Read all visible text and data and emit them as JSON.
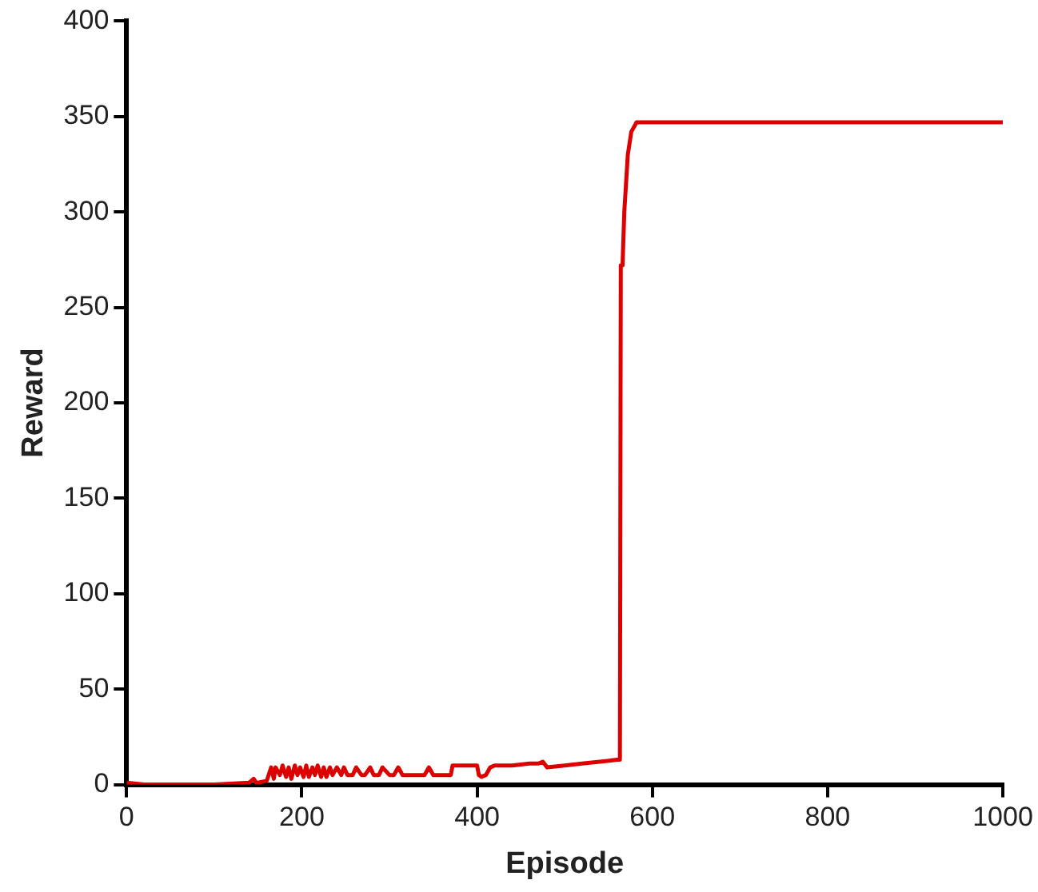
{
  "chart_data": {
    "type": "line",
    "xlabel": "Episode",
    "ylabel": "Reward",
    "xlim": [
      0,
      1000
    ],
    "ylim": [
      0,
      400
    ],
    "xticks": [
      0,
      200,
      400,
      600,
      800,
      1000
    ],
    "yticks": [
      0,
      50,
      100,
      150,
      200,
      250,
      300,
      350,
      400
    ],
    "grid": false,
    "legend": false,
    "marker": "none",
    "line_style": "solid",
    "series": [
      {
        "color": "#dd0000",
        "x": [
          0,
          20,
          60,
          100,
          140,
          145,
          148,
          150,
          160,
          165,
          168,
          170,
          175,
          178,
          182,
          185,
          188,
          192,
          195,
          198,
          202,
          205,
          208,
          212,
          215,
          218,
          222,
          225,
          228,
          232,
          235,
          240,
          245,
          248,
          252,
          258,
          262,
          268,
          272,
          278,
          282,
          288,
          292,
          300,
          305,
          310,
          315,
          320,
          330,
          340,
          345,
          350,
          355,
          360,
          370,
          372,
          380,
          390,
          395,
          400,
          402,
          405,
          410,
          415,
          420,
          440,
          460,
          470,
          475,
          480,
          500,
          520,
          540,
          560,
          563,
          564,
          566,
          568,
          572,
          576,
          582,
          1000
        ],
        "values": [
          1,
          0,
          0,
          0,
          1,
          3,
          1,
          1,
          2,
          9,
          3,
          9,
          5,
          10,
          4,
          9,
          3,
          10,
          5,
          9,
          4,
          10,
          4,
          9,
          5,
          10,
          4,
          9,
          4,
          9,
          5,
          9,
          5,
          9,
          5,
          5,
          9,
          5,
          5,
          9,
          5,
          5,
          9,
          5,
          5,
          9,
          5,
          5,
          5,
          5,
          9,
          5,
          5,
          5,
          5,
          10,
          10,
          10,
          10,
          10,
          5,
          4,
          5,
          9,
          10,
          10,
          11,
          11,
          12,
          9,
          10,
          11,
          12,
          13,
          13,
          272,
          272,
          300,
          330,
          342,
          347,
          347
        ]
      }
    ]
  }
}
